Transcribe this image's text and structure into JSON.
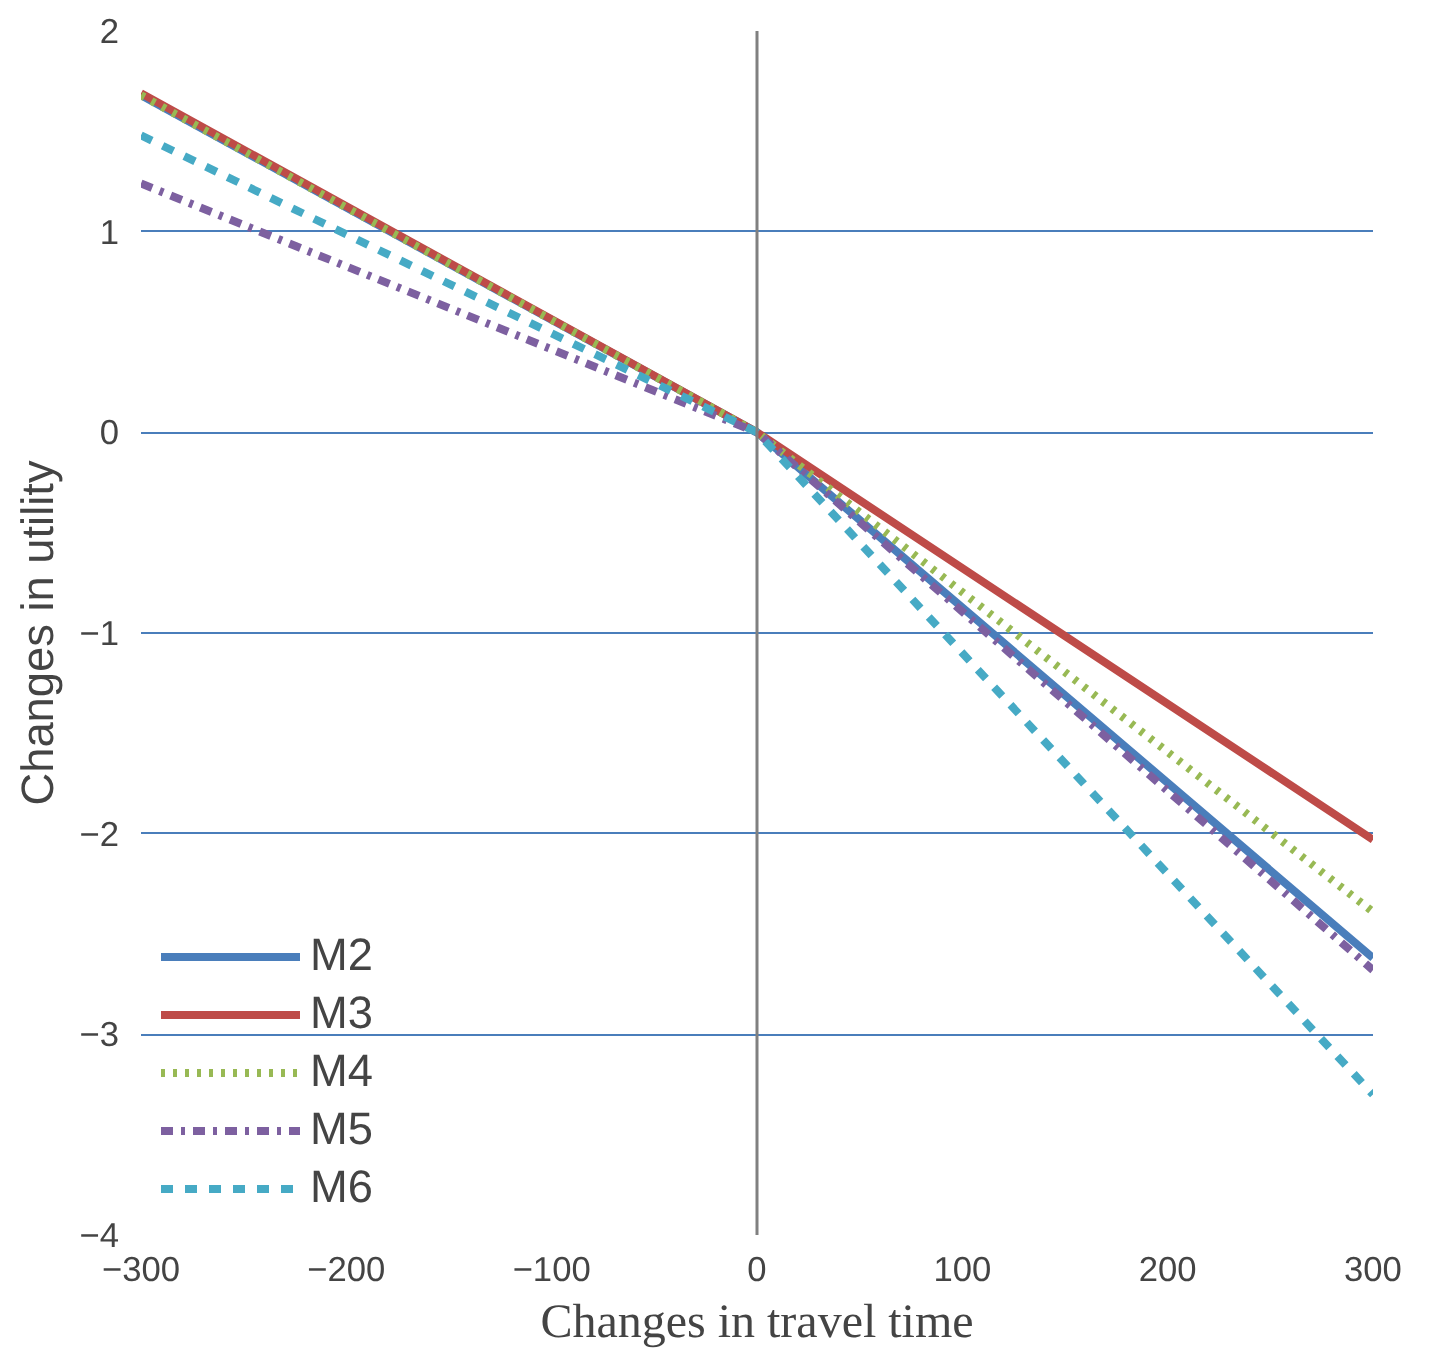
{
  "chart_data": {
    "type": "line",
    "xlabel": "Changes in travel time",
    "ylabel": "Changes in utility",
    "x": [
      -300,
      0,
      300
    ],
    "series": [
      {
        "name": "M2",
        "color": "#4a7ebb",
        "values": [
          1.68,
          0,
          -2.62
        ],
        "line_style": "solid"
      },
      {
        "name": "M3",
        "color": "#be4b48",
        "values": [
          1.69,
          0,
          -2.03
        ],
        "line_style": "solid"
      },
      {
        "name": "M4",
        "color": "#98b954",
        "values": [
          1.68,
          0,
          -2.39
        ],
        "line_style": "dotted"
      },
      {
        "name": "M5",
        "color": "#7d60a0",
        "values": [
          1.24,
          0,
          -2.68
        ],
        "line_style": "dashdot"
      },
      {
        "name": "M6",
        "color": "#46aac5",
        "values": [
          1.48,
          0,
          -3.3
        ],
        "line_style": "dashed"
      }
    ],
    "xlim": [
      -300,
      300
    ],
    "ylim": [
      -4,
      2
    ],
    "xticks": [
      -300,
      -200,
      -100,
      0,
      100,
      200,
      300
    ],
    "yticks": [
      -4,
      -3,
      -2,
      -1,
      0,
      1,
      2
    ],
    "grid": "y",
    "legend": "bottom left",
    "ref_lines": [
      {
        "axis": "x",
        "value": 0,
        "color": "#808080"
      }
    ]
  }
}
